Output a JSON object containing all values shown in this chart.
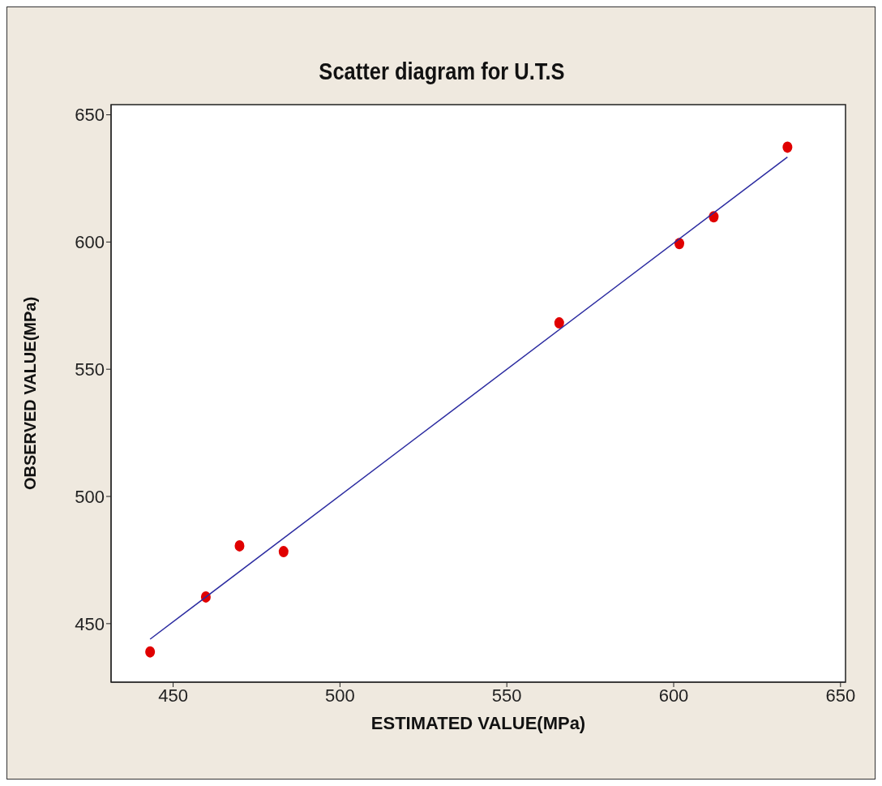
{
  "chart_data": {
    "type": "scatter",
    "title": "Scatter diagram for U.T.S",
    "xlabel": "ESTIMATED VALUE(MPa)",
    "ylabel": "OBSERVED VALUE(MPa)",
    "xlim": [
      431.4,
      651.5
    ],
    "xticks": [
      450,
      500,
      550,
      600,
      650
    ],
    "ylim": [
      427,
      654
    ],
    "yticks": [
      450,
      500,
      550,
      600,
      650
    ],
    "series": [
      {
        "color": "#e00000",
        "marker": "circle",
        "x": [
          443.1,
          459.8,
          469.9,
          483.1,
          565.7,
          601.7,
          612.0,
          634.1
        ],
        "values": [
          438.9,
          460.5,
          480.6,
          478.3,
          568.2,
          599.4,
          609.9,
          637.3
        ]
      },
      {
        "type": "line",
        "color": "#2a2aa0",
        "marker": "none",
        "x": [
          443.1,
          634.1
        ],
        "values": [
          443.9,
          633.4
        ]
      }
    ]
  }
}
